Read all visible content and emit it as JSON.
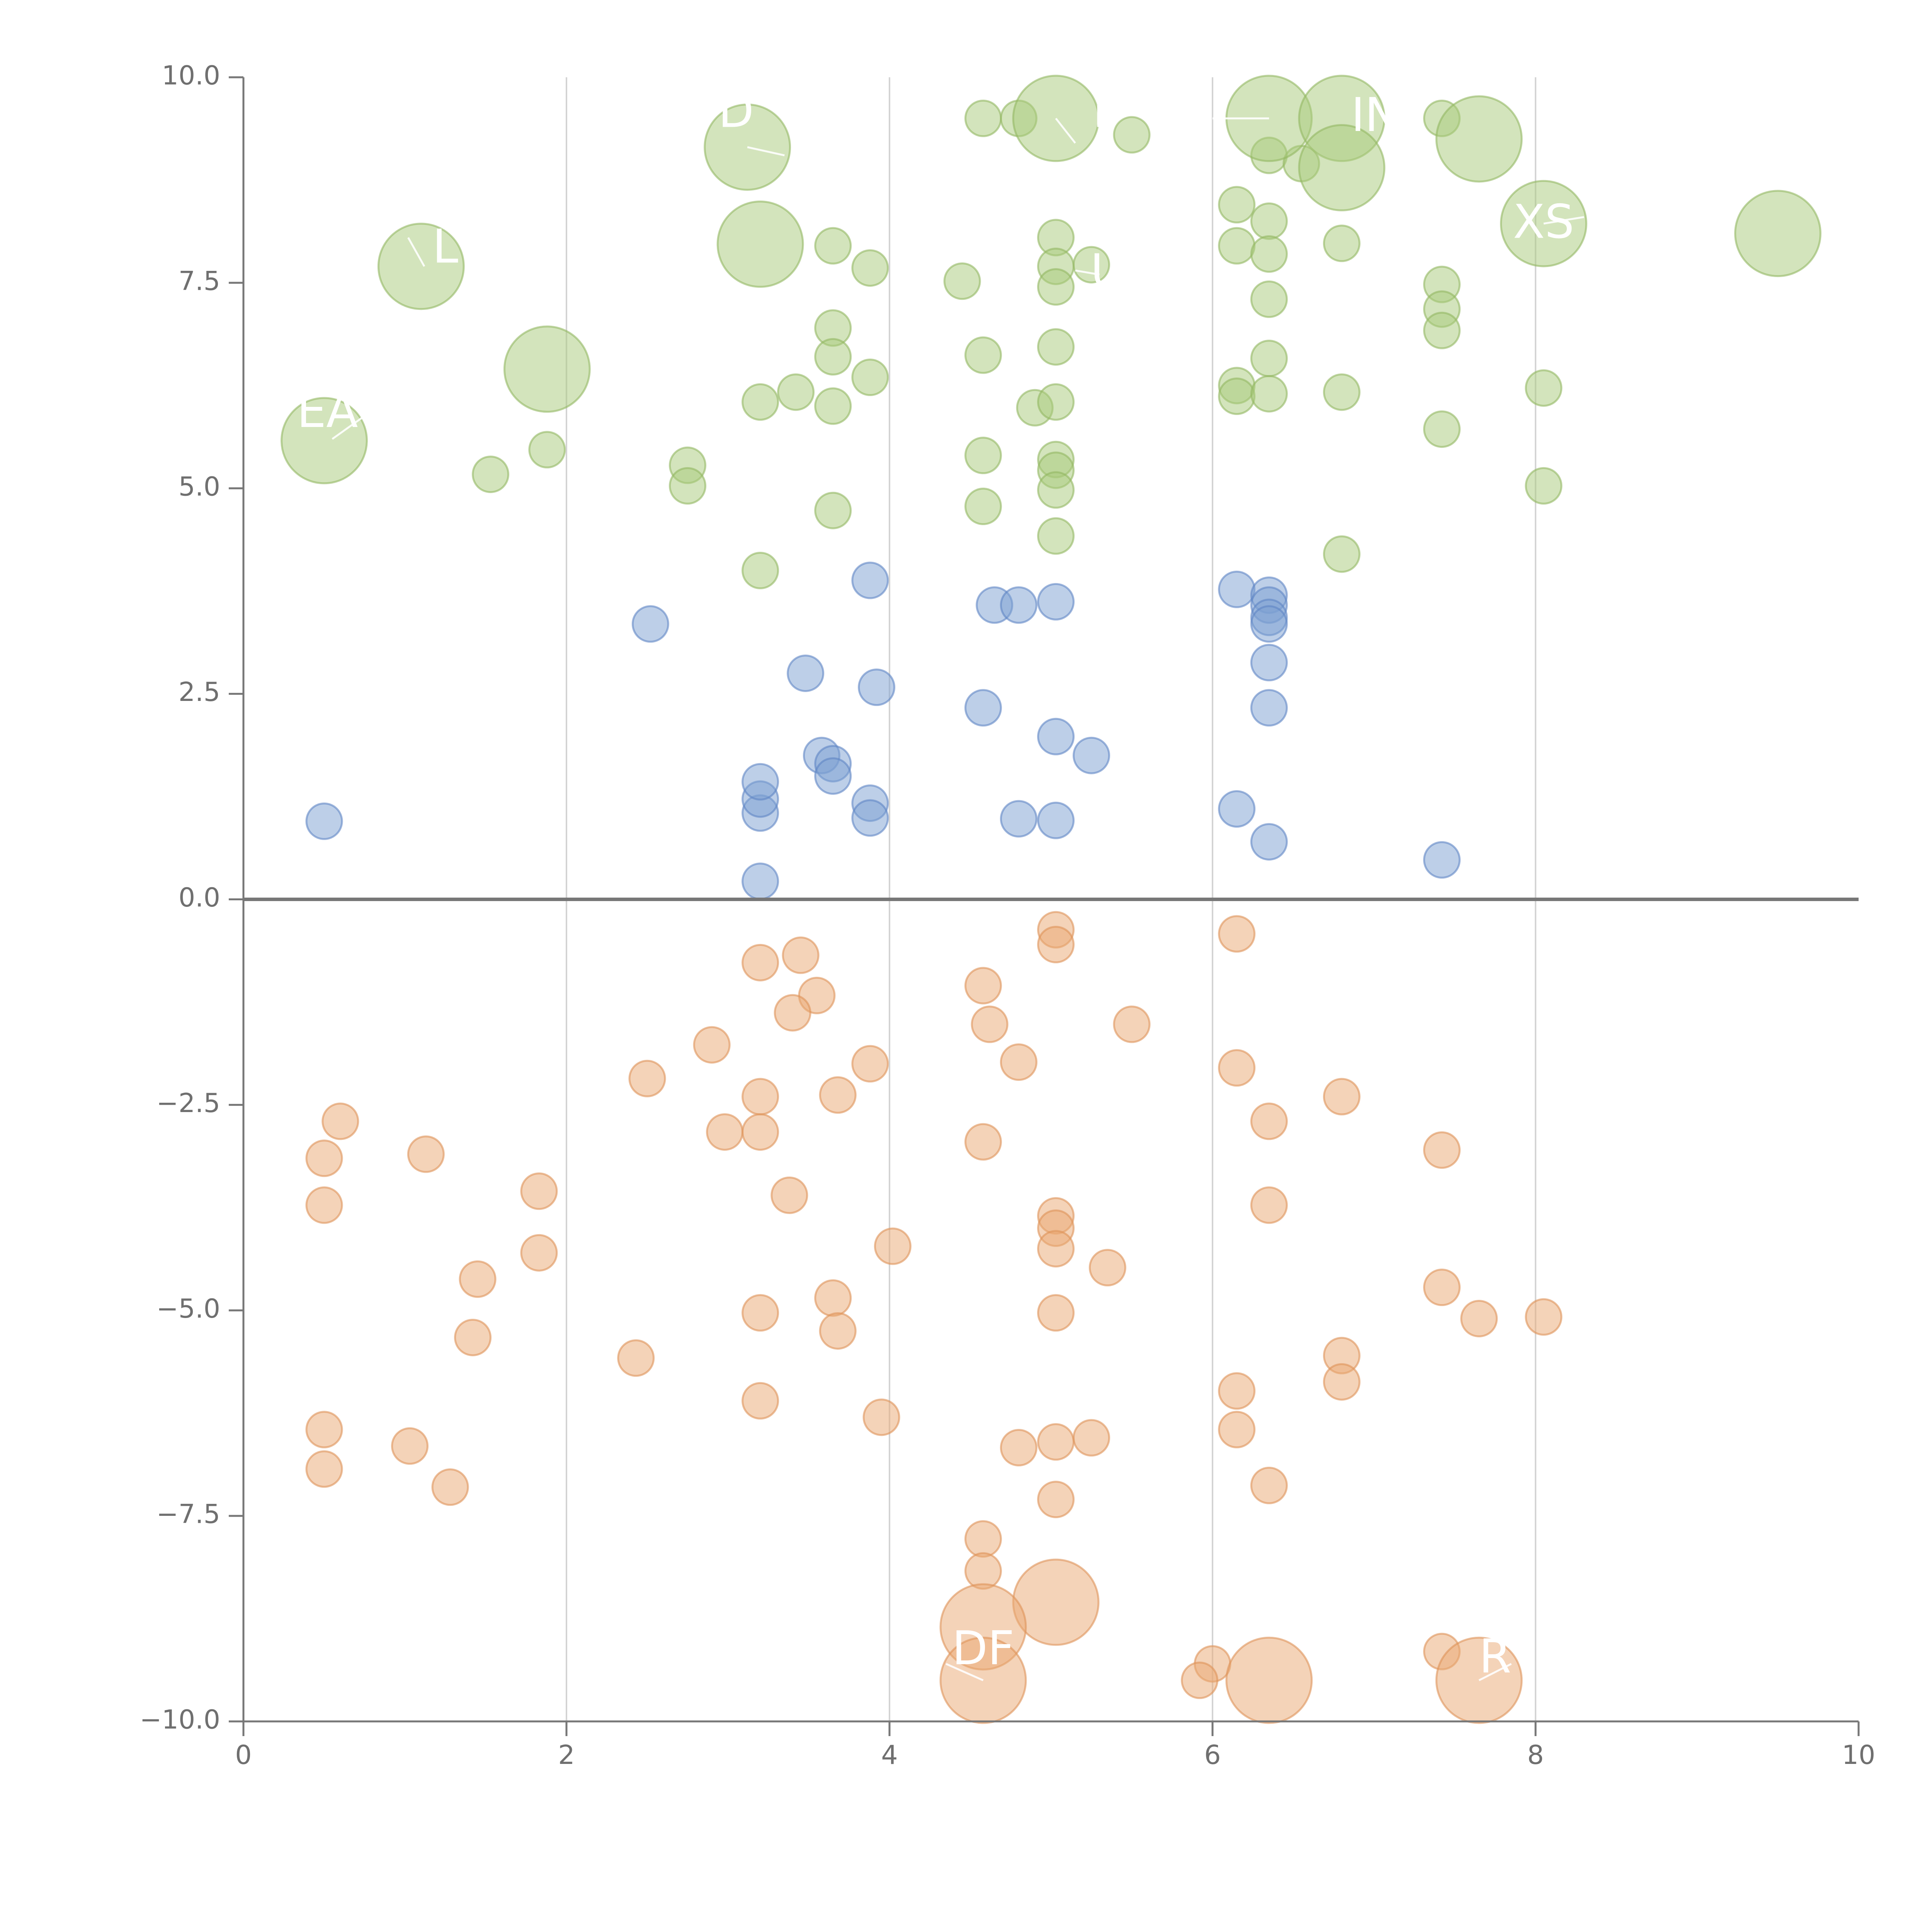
{
  "chart_data": {
    "type": "scatter",
    "title": "",
    "xlabel": "",
    "ylabel": "",
    "xlim": [
      0,
      10
    ],
    "ylim": [
      -10,
      10
    ],
    "x_ticks": [
      "0",
      "2",
      "4",
      "6",
      "8",
      "10"
    ],
    "y_ticks": [
      "10.0",
      "7.5",
      "5.0",
      "2.5",
      "0.0",
      "−2.5",
      "−5.0",
      "−7.5",
      "−10.0"
    ],
    "x_grid_values": [
      2,
      4,
      6,
      8
    ],
    "zero_line_y": 0,
    "colors": {
      "green_fill": "#a7c97a",
      "green_stroke": "#93b863",
      "blue_fill": "#7b9fd2",
      "blue_stroke": "#5f86c4",
      "orange_fill": "#e9a872",
      "orange_stroke": "#dd9358",
      "axis": "#777777",
      "grid": "#d4d4d4",
      "text": "#6f6f6f"
    },
    "series": [
      {
        "name": "green",
        "fill_key": "green_fill",
        "stroke_key": "green_stroke",
        "points": [
          [
            4.58,
            9.5,
            1
          ],
          [
            4.8,
            9.5,
            1
          ],
          [
            5.5,
            9.3,
            1
          ],
          [
            7.42,
            9.5,
            1
          ],
          [
            6.35,
            9.05,
            1
          ],
          [
            6.55,
            8.95,
            1
          ],
          [
            6.15,
            8.45,
            1
          ],
          [
            6.35,
            8.25,
            1
          ],
          [
            6.15,
            7.95,
            1
          ],
          [
            6.35,
            7.85,
            1
          ],
          [
            6.8,
            7.98,
            1
          ],
          [
            6.35,
            7.3,
            1
          ],
          [
            5.03,
            8.05,
            1
          ],
          [
            5.03,
            7.7,
            1
          ],
          [
            5.03,
            7.45,
            1
          ],
          [
            5.25,
            7.72,
            1
          ],
          [
            4.45,
            7.52,
            1
          ],
          [
            3.65,
            7.95,
            1
          ],
          [
            3.88,
            7.68,
            1
          ],
          [
            3.65,
            6.95,
            1
          ],
          [
            3.65,
            6.6,
            1
          ],
          [
            3.88,
            6.35,
            1
          ],
          [
            3.42,
            6.17,
            1
          ],
          [
            3.2,
            6.05,
            1
          ],
          [
            3.65,
            6.0,
            1
          ],
          [
            4.58,
            6.62,
            1
          ],
          [
            5.03,
            6.72,
            1
          ],
          [
            4.9,
            5.98,
            1
          ],
          [
            5.03,
            6.05,
            1
          ],
          [
            6.15,
            6.25,
            1
          ],
          [
            6.15,
            6.12,
            1
          ],
          [
            6.35,
            6.58,
            1
          ],
          [
            6.35,
            6.15,
            1
          ],
          [
            6.8,
            6.17,
            1
          ],
          [
            7.42,
            7.48,
            1
          ],
          [
            7.42,
            7.18,
            1
          ],
          [
            7.42,
            6.92,
            1
          ],
          [
            7.42,
            5.72,
            1
          ],
          [
            8.05,
            6.22,
            1
          ],
          [
            8.05,
            5.03,
            1
          ],
          [
            6.8,
            4.2,
            1
          ],
          [
            4.58,
            5.4,
            1
          ],
          [
            4.58,
            4.78,
            1
          ],
          [
            5.03,
            5.35,
            1
          ],
          [
            5.03,
            5.22,
            1
          ],
          [
            5.03,
            4.98,
            1
          ],
          [
            5.03,
            4.42,
            1
          ],
          [
            3.65,
            4.73,
            1
          ],
          [
            3.2,
            4.0,
            1
          ],
          [
            2.75,
            5.28,
            1
          ],
          [
            2.75,
            5.03,
            1
          ],
          [
            1.88,
            5.47,
            1
          ],
          [
            1.53,
            5.17,
            1
          ],
          [
            1.1,
            7.7,
            2.4
          ],
          [
            1.88,
            6.45,
            2.4
          ],
          [
            0.5,
            5.58,
            2.4
          ],
          [
            3.12,
            9.15,
            2.4
          ],
          [
            3.2,
            7.97,
            2.4
          ],
          [
            5.03,
            9.5,
            2.4
          ],
          [
            6.35,
            9.5,
            2.4
          ],
          [
            6.8,
            9.5,
            2.4
          ],
          [
            6.8,
            8.9,
            2.4
          ],
          [
            7.65,
            9.25,
            2.4
          ],
          [
            8.05,
            8.22,
            2.4
          ],
          [
            9.5,
            8.1,
            2.4
          ]
        ]
      },
      {
        "name": "blue",
        "fill_key": "blue_fill",
        "stroke_key": "blue_stroke",
        "points": [
          [
            0.5,
            0.95,
            1
          ],
          [
            2.52,
            3.35,
            1
          ],
          [
            3.2,
            0.22,
            1
          ],
          [
            3.2,
            1.05,
            1
          ],
          [
            3.2,
            1.22,
            1
          ],
          [
            3.2,
            1.43,
            1
          ],
          [
            3.48,
            2.75,
            1
          ],
          [
            3.58,
            1.75,
            1
          ],
          [
            3.65,
            1.65,
            1
          ],
          [
            3.65,
            1.5,
            1
          ],
          [
            3.88,
            1.17,
            1
          ],
          [
            3.88,
            0.99,
            1
          ],
          [
            3.88,
            3.88,
            1
          ],
          [
            3.92,
            2.58,
            1
          ],
          [
            4.58,
            2.33,
            1
          ],
          [
            4.65,
            3.58,
            1
          ],
          [
            4.8,
            3.58,
            1
          ],
          [
            4.8,
            0.98,
            1
          ],
          [
            5.03,
            3.62,
            1
          ],
          [
            5.03,
            1.98,
            1
          ],
          [
            5.03,
            0.96,
            1
          ],
          [
            5.25,
            1.75,
            1
          ],
          [
            6.15,
            3.77,
            1
          ],
          [
            6.15,
            1.1,
            1
          ],
          [
            6.35,
            3.7,
            1
          ],
          [
            6.35,
            3.58,
            1
          ],
          [
            6.35,
            3.43,
            1
          ],
          [
            6.35,
            3.35,
            1
          ],
          [
            6.35,
            2.88,
            1
          ],
          [
            6.35,
            2.33,
            1
          ],
          [
            6.35,
            0.7,
            1
          ],
          [
            7.42,
            0.48,
            1
          ]
        ]
      },
      {
        "name": "orange",
        "fill_key": "orange_fill",
        "stroke_key": "orange_stroke",
        "points": [
          [
            5.03,
            -0.37,
            1
          ],
          [
            5.03,
            -0.55,
            1
          ],
          [
            6.15,
            -0.42,
            1
          ],
          [
            3.2,
            -0.77,
            1
          ],
          [
            3.45,
            -0.68,
            1
          ],
          [
            3.55,
            -1.17,
            1
          ],
          [
            3.4,
            -1.38,
            1
          ],
          [
            4.58,
            -1.05,
            1
          ],
          [
            4.62,
            -1.52,
            1
          ],
          [
            5.5,
            -1.52,
            1
          ],
          [
            2.9,
            -1.77,
            1
          ],
          [
            3.88,
            -2.0,
            1
          ],
          [
            4.8,
            -1.98,
            1
          ],
          [
            6.15,
            -2.05,
            1
          ],
          [
            2.5,
            -2.18,
            1
          ],
          [
            3.2,
            -2.4,
            1
          ],
          [
            3.68,
            -2.38,
            1
          ],
          [
            6.8,
            -2.4,
            1
          ],
          [
            0.6,
            -2.7,
            1
          ],
          [
            2.98,
            -2.83,
            1
          ],
          [
            3.2,
            -2.83,
            1
          ],
          [
            4.58,
            -2.95,
            1
          ],
          [
            6.35,
            -2.7,
            1
          ],
          [
            0.5,
            -3.15,
            1
          ],
          [
            1.13,
            -3.1,
            1
          ],
          [
            7.42,
            -3.05,
            1
          ],
          [
            0.5,
            -3.72,
            1
          ],
          [
            1.83,
            -3.55,
            1
          ],
          [
            3.38,
            -3.6,
            1
          ],
          [
            6.35,
            -3.72,
            1
          ],
          [
            5.03,
            -3.85,
            1
          ],
          [
            5.03,
            -4.0,
            1
          ],
          [
            5.03,
            -4.25,
            1
          ],
          [
            4.02,
            -4.22,
            1
          ],
          [
            1.83,
            -4.3,
            1
          ],
          [
            5.35,
            -4.48,
            1
          ],
          [
            1.45,
            -4.62,
            1
          ],
          [
            7.42,
            -4.72,
            1
          ],
          [
            3.65,
            -4.85,
            1
          ],
          [
            3.2,
            -5.03,
            1
          ],
          [
            5.03,
            -5.03,
            1
          ],
          [
            7.65,
            -5.1,
            1
          ],
          [
            8.05,
            -5.08,
            1
          ],
          [
            1.42,
            -5.33,
            1
          ],
          [
            3.68,
            -5.25,
            1
          ],
          [
            2.43,
            -5.58,
            1
          ],
          [
            6.8,
            -5.55,
            1
          ],
          [
            6.8,
            -5.87,
            1
          ],
          [
            6.15,
            -5.98,
            1
          ],
          [
            3.2,
            -6.1,
            1
          ],
          [
            3.95,
            -6.3,
            1
          ],
          [
            6.15,
            -6.45,
            1
          ],
          [
            0.5,
            -6.45,
            1
          ],
          [
            1.03,
            -6.65,
            1
          ],
          [
            5.03,
            -6.6,
            1
          ],
          [
            5.25,
            -6.55,
            1
          ],
          [
            4.8,
            -6.67,
            1
          ],
          [
            0.5,
            -6.93,
            1
          ],
          [
            1.28,
            -7.15,
            1
          ],
          [
            6.35,
            -7.13,
            1
          ],
          [
            5.03,
            -7.3,
            1
          ],
          [
            4.58,
            -7.78,
            1
          ],
          [
            4.58,
            -8.17,
            1
          ],
          [
            6.0,
            -9.3,
            1
          ],
          [
            5.92,
            -9.5,
            1
          ],
          [
            7.42,
            -9.15,
            1
          ],
          [
            5.03,
            -8.55,
            2.4
          ],
          [
            4.58,
            -8.85,
            2.4
          ],
          [
            4.58,
            -9.5,
            2.4
          ],
          [
            6.35,
            -9.5,
            2.4
          ],
          [
            7.65,
            -9.5,
            2.4
          ]
        ]
      }
    ],
    "annotations": [
      {
        "text": "EA",
        "x": 0.52,
        "y": 5.9,
        "line": [
          0.55,
          5.6,
          0.8,
          5.95
        ]
      },
      {
        "text": "L",
        "x": 1.25,
        "y": 7.9,
        "line": [
          1.12,
          7.7,
          1.02,
          8.05
        ]
      },
      {
        "text": "D",
        "x": 3.05,
        "y": 9.55,
        "line": [
          3.12,
          9.15,
          3.35,
          9.05
        ]
      },
      {
        "text": "I",
        "x": 5.3,
        "y": 9.55,
        "line": [
          5.03,
          9.5,
          5.15,
          9.2
        ]
      },
      {
        "text": "INJ",
        "x": 7.05,
        "y": 9.5,
        "line": [
          6.35,
          9.5,
          6.0,
          9.5
        ]
      },
      {
        "text": "XS",
        "x": 8.05,
        "y": 8.2,
        "line": [
          8.05,
          8.22,
          8.3,
          8.3
        ]
      },
      {
        "text": "U",
        "x": 5.35,
        "y": 7.6,
        "line": [
          5.3,
          7.6,
          5.15,
          7.65
        ]
      },
      {
        "text": "DF",
        "x": 4.58,
        "y": -9.15,
        "line": [
          4.58,
          -9.5,
          4.35,
          -9.3
        ]
      },
      {
        "text": "R",
        "x": 7.75,
        "y": -9.25,
        "line": [
          7.65,
          -9.5,
          7.85,
          -9.3
        ]
      }
    ]
  }
}
